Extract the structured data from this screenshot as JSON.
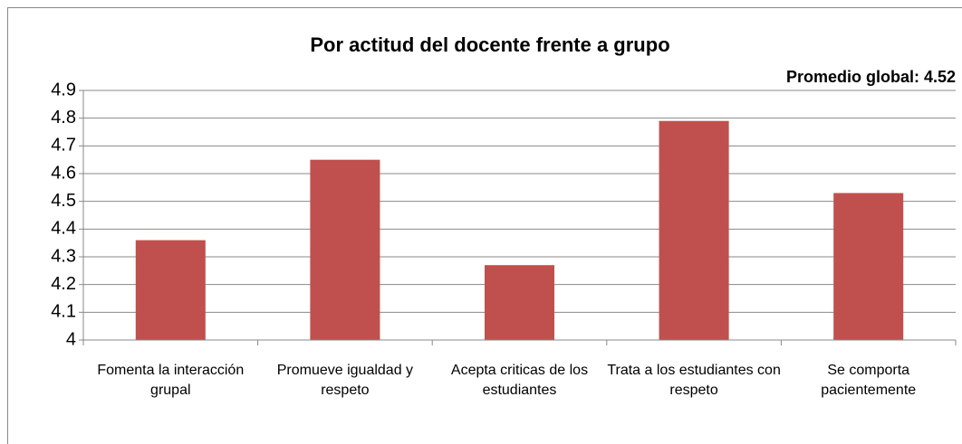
{
  "chart_data": {
    "type": "bar",
    "title": "Por actitud del docente frente a grupo",
    "annotation": "Promedio global: 4.52",
    "categories": [
      "Fomenta la interacción grupal",
      "Promueve igualdad y respeto",
      "Acepta criticas de los estudiantes",
      "Trata a los estudiantes con respeto",
      "Se comporta pacientemente"
    ],
    "values": [
      4.36,
      4.65,
      4.27,
      4.79,
      4.53
    ],
    "color": "#c0504d",
    "ylim": [
      4,
      4.9
    ],
    "yticks": [
      4,
      4.1,
      4.2,
      4.3,
      4.4,
      4.5,
      4.6,
      4.7,
      4.8,
      4.9
    ],
    "grid": true
  }
}
